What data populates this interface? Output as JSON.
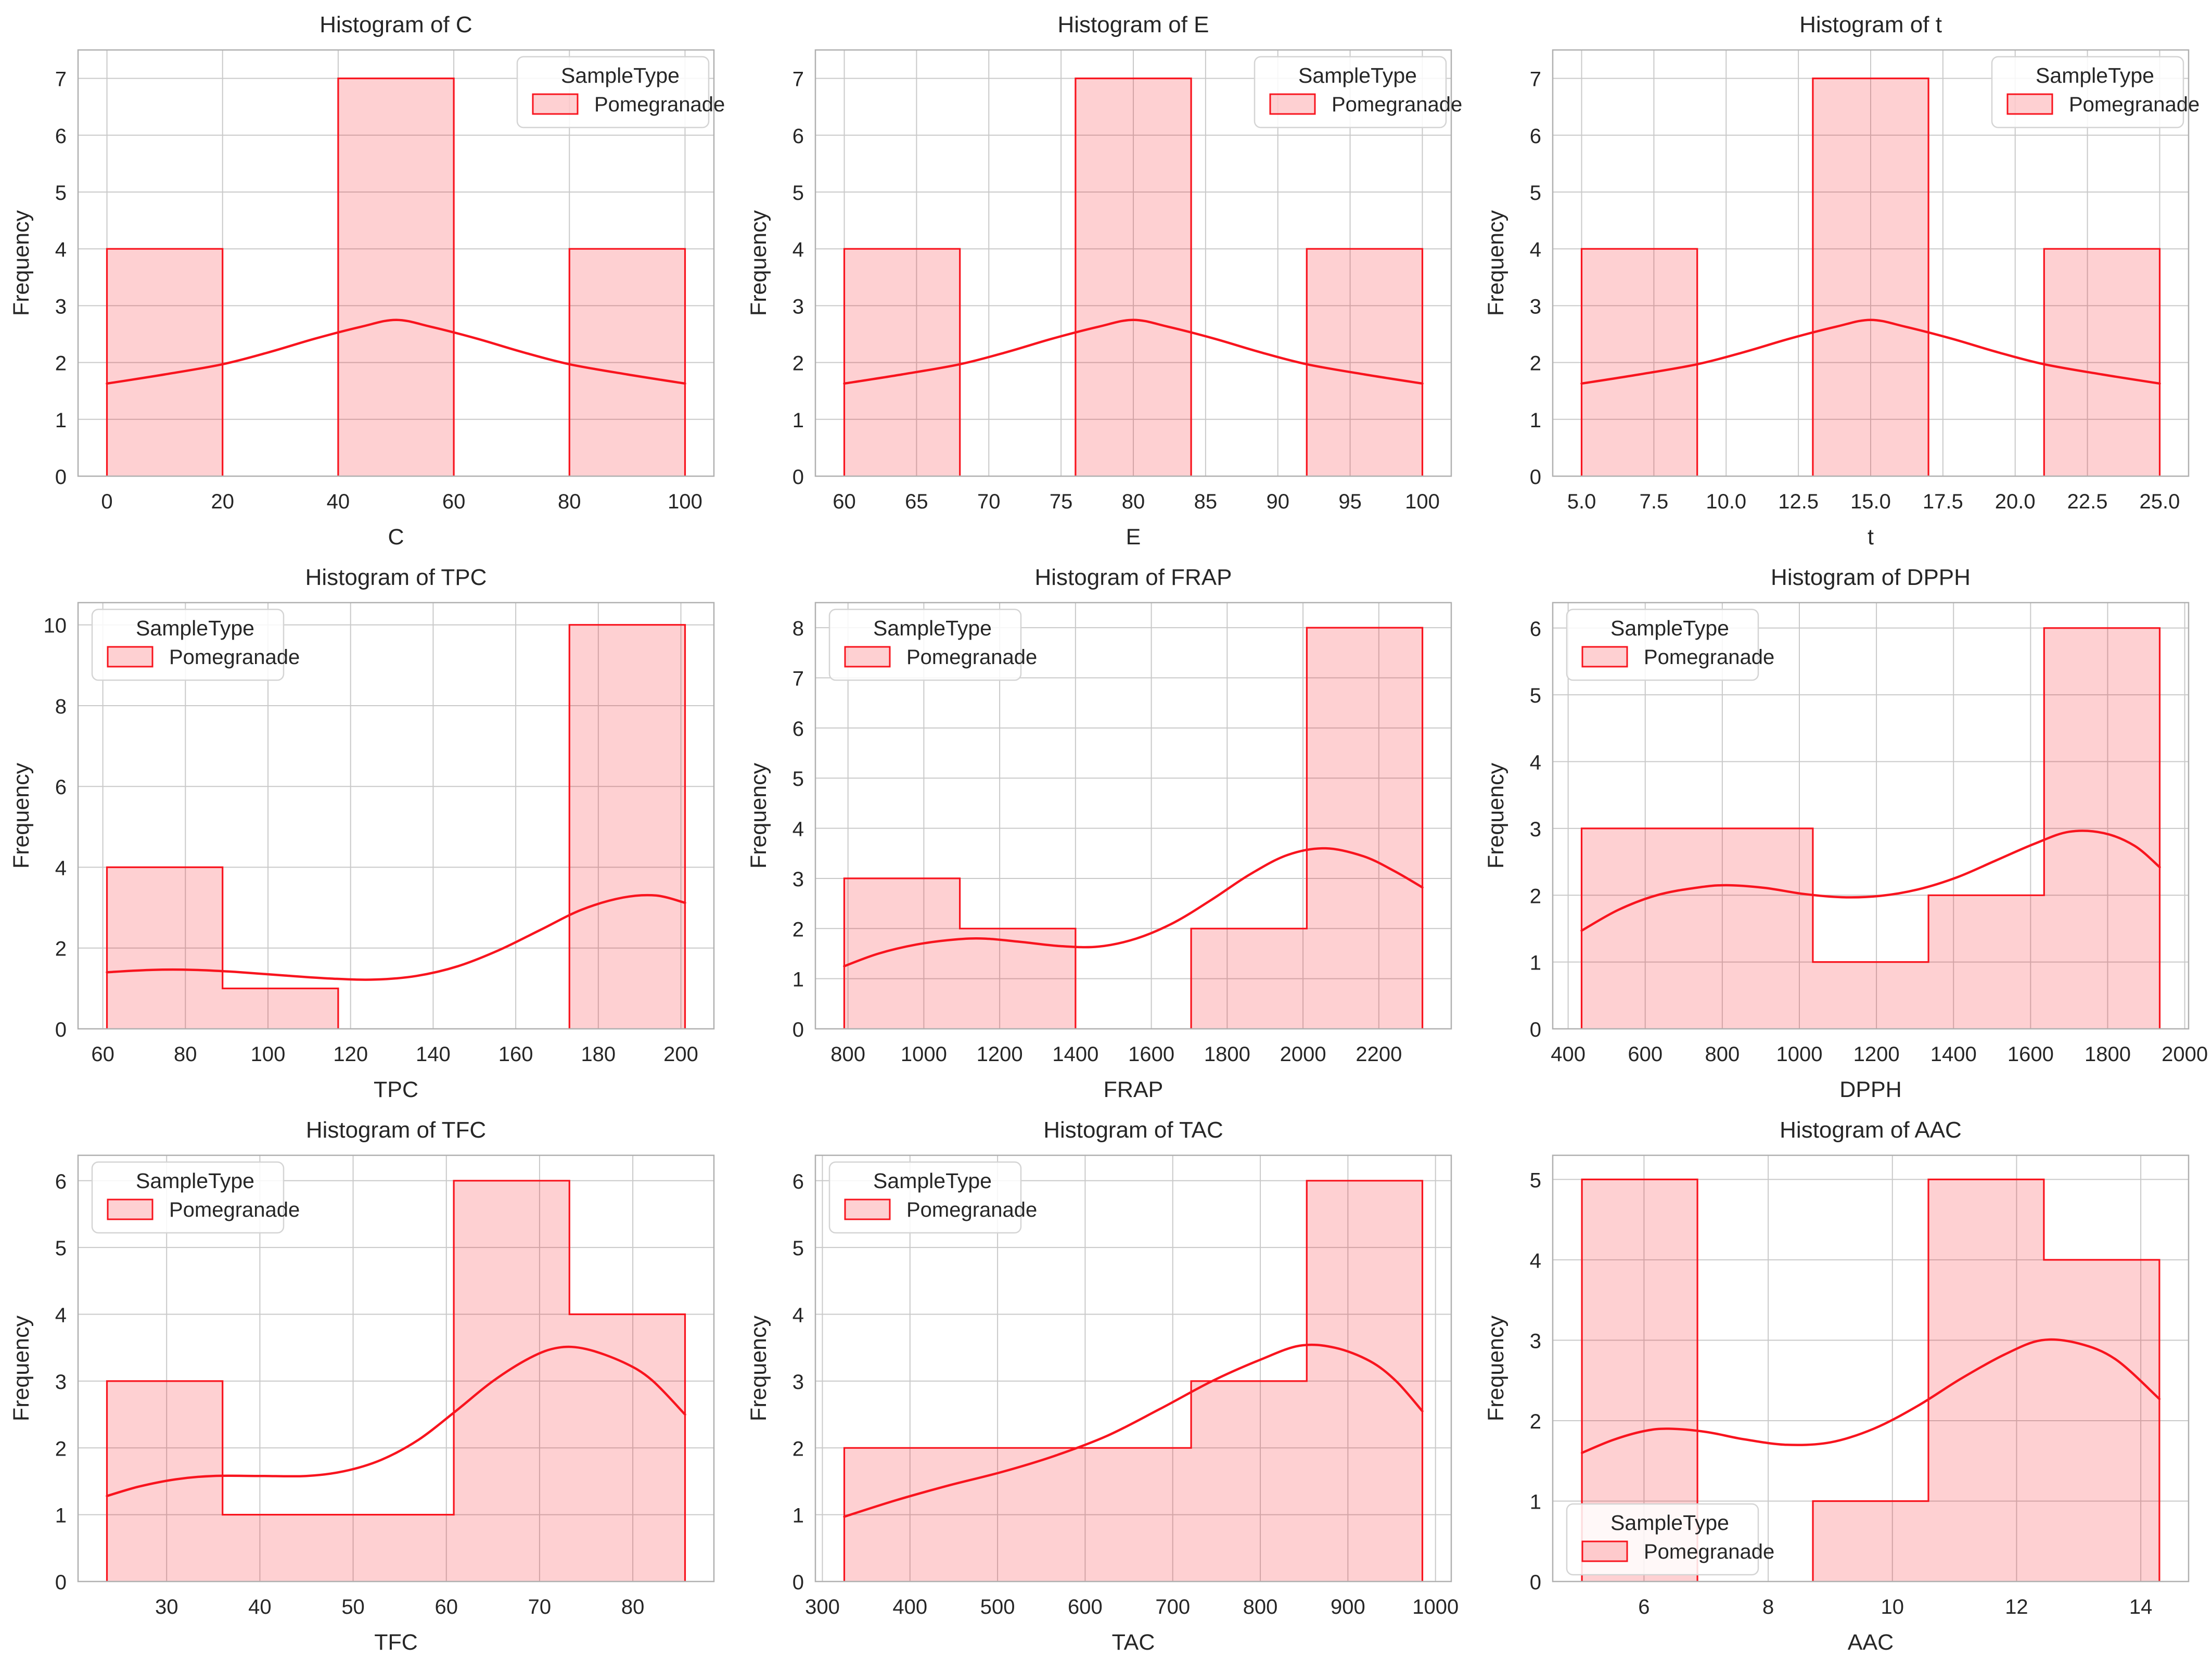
{
  "figure": {
    "background": "#ffffff",
    "rows": 3,
    "cols": 3
  },
  "style": {
    "red": "#f8141e",
    "bar_fill_alpha": 0.2,
    "grid_color": "#c9c9c9",
    "spine_color": "#b0b0b0",
    "text_color": "#262626",
    "legend_border": "#d4d4d4",
    "legend_bg_alpha": 0.85
  },
  "legend": {
    "title": "SampleType",
    "label": "Pomegranade"
  },
  "chart_data": [
    {
      "type": "histogram",
      "title": "Histogram of C",
      "xlabel": "C",
      "ylabel": "Frequency",
      "xlim": [
        -5,
        105
      ],
      "ylim": [
        0,
        7.5
      ],
      "xticks": [
        0,
        20,
        40,
        60,
        80,
        100
      ],
      "xtick_labels": [
        "0",
        "20",
        "40",
        "60",
        "80",
        "100"
      ],
      "yticks": [
        0,
        1,
        2,
        3,
        4,
        5,
        6,
        7
      ],
      "bin_edges": [
        0,
        20,
        40,
        60,
        80,
        100
      ],
      "counts": [
        4,
        0,
        7,
        0,
        4
      ],
      "kde": [
        [
          0,
          1.63
        ],
        [
          10,
          1.79
        ],
        [
          20,
          1.97
        ],
        [
          28,
          2.18
        ],
        [
          36,
          2.42
        ],
        [
          44,
          2.63
        ],
        [
          50,
          2.75
        ],
        [
          56,
          2.63
        ],
        [
          64,
          2.42
        ],
        [
          72,
          2.18
        ],
        [
          80,
          1.97
        ],
        [
          90,
          1.79
        ],
        [
          100,
          1.63
        ]
      ],
      "legend_pos": "top-right"
    },
    {
      "type": "histogram",
      "title": "Histogram of E",
      "xlabel": "E",
      "ylabel": "Frequency",
      "xlim": [
        58,
        102
      ],
      "ylim": [
        0,
        7.5
      ],
      "xticks": [
        60,
        65,
        70,
        75,
        80,
        85,
        90,
        95,
        100
      ],
      "xtick_labels": [
        "60",
        "65",
        "70",
        "75",
        "80",
        "85",
        "90",
        "95",
        "100"
      ],
      "yticks": [
        0,
        1,
        2,
        3,
        4,
        5,
        6,
        7
      ],
      "bin_edges": [
        60,
        68,
        76,
        84,
        92,
        100
      ],
      "counts": [
        4,
        0,
        7,
        0,
        4
      ],
      "kde": [
        [
          60,
          1.63
        ],
        [
          64,
          1.79
        ],
        [
          68,
          1.97
        ],
        [
          71.2,
          2.18
        ],
        [
          74.4,
          2.42
        ],
        [
          77.6,
          2.63
        ],
        [
          80,
          2.75
        ],
        [
          82.4,
          2.63
        ],
        [
          85.6,
          2.42
        ],
        [
          88.8,
          2.18
        ],
        [
          92,
          1.97
        ],
        [
          96,
          1.79
        ],
        [
          100,
          1.63
        ]
      ],
      "legend_pos": "top-right"
    },
    {
      "type": "histogram",
      "title": "Histogram of t",
      "xlabel": "t",
      "ylabel": "Frequency",
      "xlim": [
        4,
        26
      ],
      "ylim": [
        0,
        7.5
      ],
      "xticks": [
        5,
        7.5,
        10,
        12.5,
        15,
        17.5,
        20,
        22.5,
        25
      ],
      "xtick_labels": [
        "5.0",
        "7.5",
        "10.0",
        "12.5",
        "15.0",
        "17.5",
        "20.0",
        "22.5",
        "25.0"
      ],
      "yticks": [
        0,
        1,
        2,
        3,
        4,
        5,
        6,
        7
      ],
      "bin_edges": [
        5,
        9,
        13,
        17,
        21,
        25
      ],
      "counts": [
        4,
        0,
        7,
        0,
        4
      ],
      "kde": [
        [
          5,
          1.63
        ],
        [
          7,
          1.79
        ],
        [
          9,
          1.97
        ],
        [
          10.6,
          2.18
        ],
        [
          12.2,
          2.42
        ],
        [
          13.8,
          2.63
        ],
        [
          15,
          2.75
        ],
        [
          16.2,
          2.63
        ],
        [
          17.8,
          2.42
        ],
        [
          19.4,
          2.18
        ],
        [
          21,
          1.97
        ],
        [
          23,
          1.79
        ],
        [
          25,
          1.63
        ]
      ],
      "legend_pos": "top-right"
    },
    {
      "type": "histogram",
      "title": "Histogram of TPC",
      "xlabel": "TPC",
      "ylabel": "Frequency",
      "xlim": [
        54,
        208
      ],
      "ylim": [
        0,
        10.55
      ],
      "xticks": [
        60,
        80,
        100,
        120,
        140,
        160,
        180,
        200
      ],
      "xtick_labels": [
        "60",
        "80",
        "100",
        "120",
        "140",
        "160",
        "180",
        "200"
      ],
      "yticks": [
        0,
        2,
        4,
        6,
        8,
        10
      ],
      "bin_edges": [
        61,
        89,
        117,
        145,
        173,
        201
      ],
      "counts": [
        4,
        1,
        0,
        0,
        10
      ],
      "kde": [
        [
          61,
          1.4
        ],
        [
          72,
          1.46
        ],
        [
          82,
          1.46
        ],
        [
          92,
          1.41
        ],
        [
          104,
          1.32
        ],
        [
          116,
          1.24
        ],
        [
          126,
          1.22
        ],
        [
          136,
          1.31
        ],
        [
          146,
          1.55
        ],
        [
          156,
          1.95
        ],
        [
          166,
          2.45
        ],
        [
          176,
          2.95
        ],
        [
          186,
          3.25
        ],
        [
          194,
          3.3
        ],
        [
          201,
          3.12
        ]
      ],
      "legend_pos": "top-left"
    },
    {
      "type": "histogram",
      "title": "Histogram of FRAP",
      "xlabel": "FRAP",
      "ylabel": "Frequency",
      "xlim": [
        714,
        2391
      ],
      "ylim": [
        0,
        8.5
      ],
      "xticks": [
        800,
        1000,
        1200,
        1400,
        1600,
        1800,
        2000,
        2200
      ],
      "xtick_labels": [
        "800",
        "1000",
        "1200",
        "1400",
        "1600",
        "1800",
        "2000",
        "2200"
      ],
      "yticks": [
        0,
        1,
        2,
        3,
        4,
        5,
        6,
        7,
        8
      ],
      "bin_edges": [
        790,
        1095,
        1400,
        1705,
        2010,
        2315
      ],
      "counts": [
        3,
        2,
        0,
        2,
        8
      ],
      "kde": [
        [
          790,
          1.25
        ],
        [
          880,
          1.5
        ],
        [
          980,
          1.68
        ],
        [
          1080,
          1.78
        ],
        [
          1160,
          1.8
        ],
        [
          1260,
          1.73
        ],
        [
          1360,
          1.65
        ],
        [
          1460,
          1.64
        ],
        [
          1560,
          1.8
        ],
        [
          1660,
          2.12
        ],
        [
          1760,
          2.58
        ],
        [
          1860,
          3.08
        ],
        [
          1960,
          3.47
        ],
        [
          2060,
          3.6
        ],
        [
          2160,
          3.44
        ],
        [
          2240,
          3.15
        ],
        [
          2315,
          2.82
        ]
      ],
      "legend_pos": "top-left"
    },
    {
      "type": "histogram",
      "title": "Histogram of DPPH",
      "xlabel": "DPPH",
      "ylabel": "Frequency",
      "xlim": [
        360,
        2010
      ],
      "ylim": [
        0,
        6.38
      ],
      "xticks": [
        400,
        600,
        800,
        1000,
        1200,
        1400,
        1600,
        1800,
        2000
      ],
      "xtick_labels": [
        "400",
        "600",
        "800",
        "1000",
        "1200",
        "1400",
        "1600",
        "1800",
        "2000"
      ],
      "yticks": [
        0,
        1,
        2,
        3,
        4,
        5,
        6
      ],
      "bin_edges": [
        435,
        735,
        1035,
        1335,
        1635,
        1935
      ],
      "counts": [
        3,
        3,
        1,
        2,
        6
      ],
      "kde": [
        [
          435,
          1.47
        ],
        [
          530,
          1.78
        ],
        [
          630,
          2.0
        ],
        [
          730,
          2.11
        ],
        [
          810,
          2.15
        ],
        [
          910,
          2.11
        ],
        [
          1010,
          2.02
        ],
        [
          1110,
          1.97
        ],
        [
          1210,
          1.99
        ],
        [
          1310,
          2.09
        ],
        [
          1410,
          2.27
        ],
        [
          1510,
          2.52
        ],
        [
          1610,
          2.77
        ],
        [
          1700,
          2.95
        ],
        [
          1790,
          2.93
        ],
        [
          1870,
          2.74
        ],
        [
          1935,
          2.42
        ]
      ],
      "legend_pos": "top-left"
    },
    {
      "type": "histogram",
      "title": "Histogram of TFC",
      "xlabel": "TFC",
      "ylabel": "Frequency",
      "xlim": [
        20.5,
        88.7
      ],
      "ylim": [
        0,
        6.38
      ],
      "xticks": [
        30,
        40,
        50,
        60,
        70,
        80
      ],
      "xtick_labels": [
        "30",
        "40",
        "50",
        "60",
        "70",
        "80"
      ],
      "yticks": [
        0,
        1,
        2,
        3,
        4,
        5,
        6
      ],
      "bin_edges": [
        23.6,
        36,
        48.4,
        60.8,
        73.2,
        85.6
      ],
      "counts": [
        3,
        1,
        1,
        6,
        4
      ],
      "kde": [
        [
          23.6,
          1.28
        ],
        [
          27,
          1.42
        ],
        [
          31,
          1.53
        ],
        [
          35,
          1.58
        ],
        [
          40,
          1.58
        ],
        [
          45,
          1.58
        ],
        [
          49,
          1.65
        ],
        [
          53,
          1.82
        ],
        [
          57,
          2.12
        ],
        [
          61,
          2.55
        ],
        [
          65,
          3.0
        ],
        [
          69,
          3.35
        ],
        [
          72,
          3.5
        ],
        [
          75,
          3.48
        ],
        [
          79,
          3.28
        ],
        [
          82,
          3.02
        ],
        [
          85.6,
          2.5
        ]
      ],
      "legend_pos": "top-left"
    },
    {
      "type": "histogram",
      "title": "Histogram of TAC",
      "xlabel": "TAC",
      "ylabel": "Frequency",
      "xlim": [
        292,
        1018
      ],
      "ylim": [
        0,
        6.38
      ],
      "xticks": [
        300,
        400,
        500,
        600,
        700,
        800,
        900,
        1000
      ],
      "xtick_labels": [
        "300",
        "400",
        "500",
        "600",
        "700",
        "800",
        "900",
        "1000"
      ],
      "yticks": [
        0,
        1,
        2,
        3,
        4,
        5,
        6
      ],
      "bin_edges": [
        325,
        457,
        589,
        721,
        853,
        985
      ],
      "counts": [
        2,
        2,
        2,
        3,
        6
      ],
      "kde": [
        [
          325,
          0.97
        ],
        [
          385,
          1.22
        ],
        [
          445,
          1.44
        ],
        [
          505,
          1.64
        ],
        [
          565,
          1.88
        ],
        [
          625,
          2.18
        ],
        [
          685,
          2.58
        ],
        [
          745,
          3.0
        ],
        [
          800,
          3.32
        ],
        [
          845,
          3.53
        ],
        [
          885,
          3.5
        ],
        [
          925,
          3.3
        ],
        [
          955,
          3.0
        ],
        [
          985,
          2.55
        ]
      ],
      "legend_pos": "top-left"
    },
    {
      "type": "histogram",
      "title": "Histogram of AAC",
      "xlabel": "AAC",
      "ylabel": "Frequency",
      "xlim": [
        4.53,
        14.77
      ],
      "ylim": [
        0,
        5.3
      ],
      "xticks": [
        6,
        8,
        10,
        12,
        14
      ],
      "xtick_labels": [
        "6",
        "8",
        "10",
        "12",
        "14"
      ],
      "yticks": [
        0,
        1,
        2,
        3,
        4,
        5
      ],
      "bin_edges": [
        5.0,
        6.86,
        8.72,
        10.58,
        12.44,
        14.3
      ],
      "counts": [
        5,
        0,
        1,
        5,
        4
      ],
      "kde": [
        [
          5.0,
          1.6
        ],
        [
          5.5,
          1.76
        ],
        [
          6.0,
          1.87
        ],
        [
          6.4,
          1.9
        ],
        [
          7.0,
          1.86
        ],
        [
          7.6,
          1.77
        ],
        [
          8.3,
          1.7
        ],
        [
          9.0,
          1.73
        ],
        [
          9.7,
          1.9
        ],
        [
          10.4,
          2.18
        ],
        [
          11.1,
          2.52
        ],
        [
          11.8,
          2.82
        ],
        [
          12.4,
          3.0
        ],
        [
          13.0,
          2.96
        ],
        [
          13.6,
          2.76
        ],
        [
          14.3,
          2.27
        ]
      ],
      "legend_pos": "bottom-left"
    }
  ]
}
